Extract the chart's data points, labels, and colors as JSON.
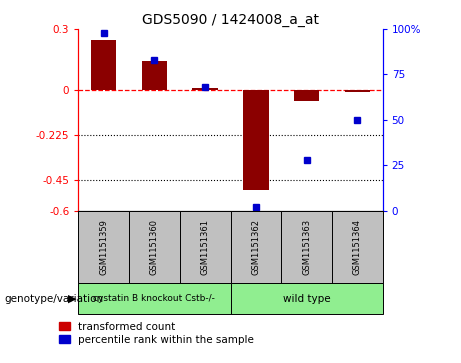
{
  "title": "GDS5090 / 1424008_a_at",
  "samples": [
    "GSM1151359",
    "GSM1151360",
    "GSM1151361",
    "GSM1151362",
    "GSM1151363",
    "GSM1151364"
  ],
  "red_values": [
    0.245,
    0.14,
    0.01,
    -0.5,
    -0.055,
    -0.01
  ],
  "blue_values": [
    98,
    83,
    68,
    2,
    28,
    50
  ],
  "ylim_left": [
    -0.6,
    0.3
  ],
  "ylim_right": [
    0,
    100
  ],
  "yticks_left": [
    0.3,
    0.0,
    -0.225,
    -0.45,
    -0.6
  ],
  "yticks_right": [
    100,
    75,
    50,
    25,
    0
  ],
  "hline_y": 0,
  "dotted_lines": [
    -0.225,
    -0.45
  ],
  "bar_color": "#8B0000",
  "dot_color": "#0000CC",
  "legend_labels": [
    "transformed count",
    "percentile rank within the sample"
  ],
  "legend_colors": [
    "#CC0000",
    "#0000CC"
  ],
  "group1_label": "cystatin B knockout Cstb-/-",
  "group2_label": "wild type",
  "genotype_label": "genotype/variation",
  "bar_width": 0.5,
  "sample_box_color": "#C0C0C0",
  "group_box_color": "#90EE90"
}
